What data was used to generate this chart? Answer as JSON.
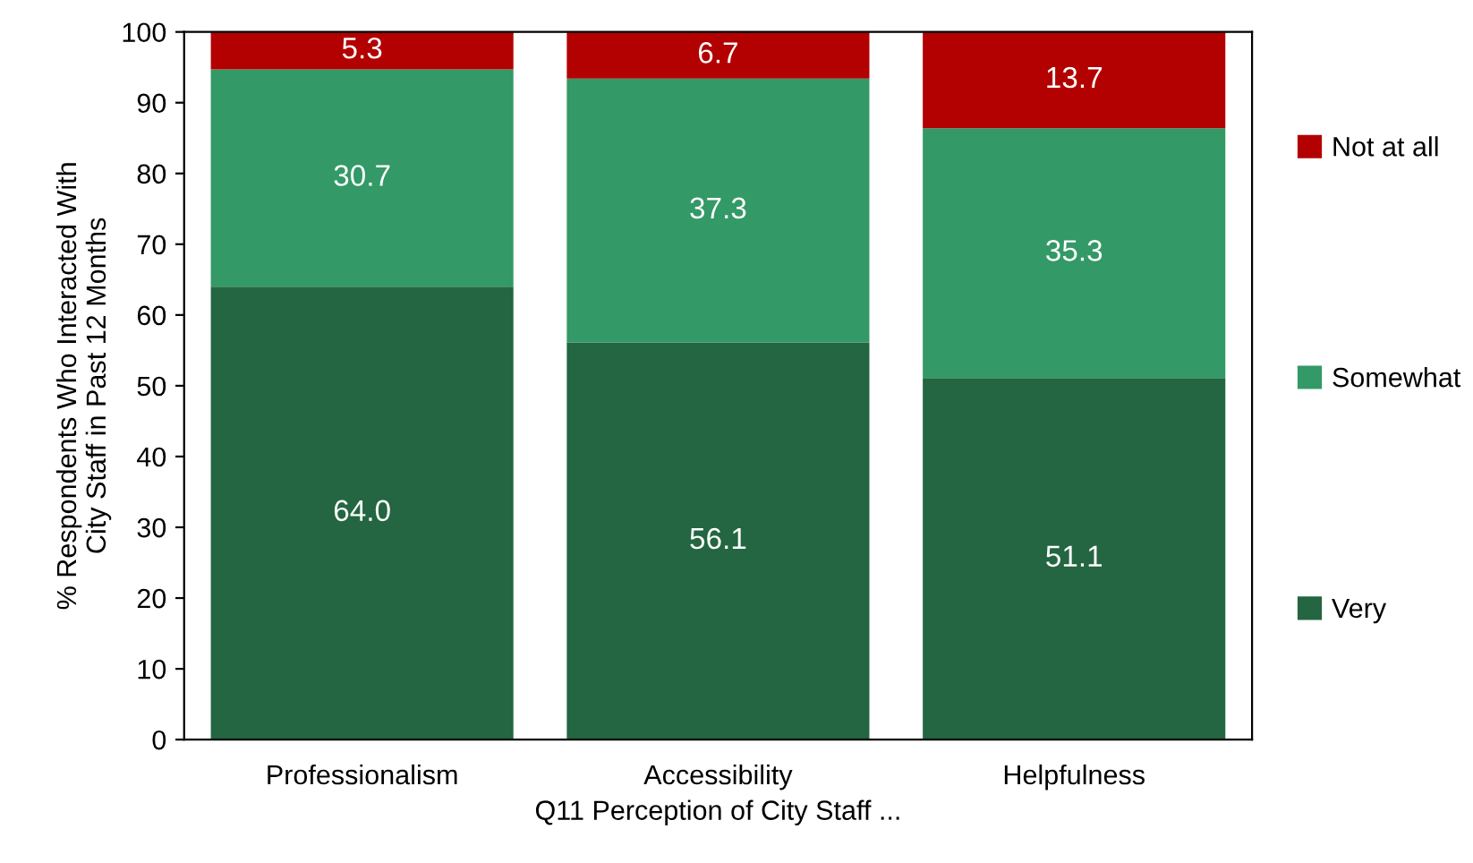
{
  "chart_data": {
    "type": "bar",
    "stacked": true,
    "xlabel": "Q11 Perception of City Staff ...",
    "ylabel": "% Respondents Who Interacted With\nCity Staff in Past 12 Months",
    "categories": [
      "Professionalism",
      "Accessibility",
      "Helpfulness"
    ],
    "series": [
      {
        "name": "Very",
        "color": "#236641",
        "values": [
          64.0,
          56.1,
          51.1
        ],
        "value_labels": [
          "64.0",
          "56.1",
          "51.1"
        ]
      },
      {
        "name": "Somewhat",
        "color": "#339966",
        "values": [
          30.7,
          37.3,
          35.3
        ],
        "value_labels": [
          "30.7",
          "37.3",
          "35.3"
        ]
      },
      {
        "name": "Not at all",
        "color": "#b30000",
        "values": [
          5.3,
          6.7,
          13.7
        ],
        "value_labels": [
          "5.3",
          "6.7",
          "13.7"
        ]
      }
    ],
    "ylim": [
      0,
      100
    ],
    "yticks": [
      0,
      10,
      20,
      30,
      40,
      50,
      60,
      70,
      80,
      90,
      100
    ],
    "grid": false,
    "legend": "right"
  }
}
